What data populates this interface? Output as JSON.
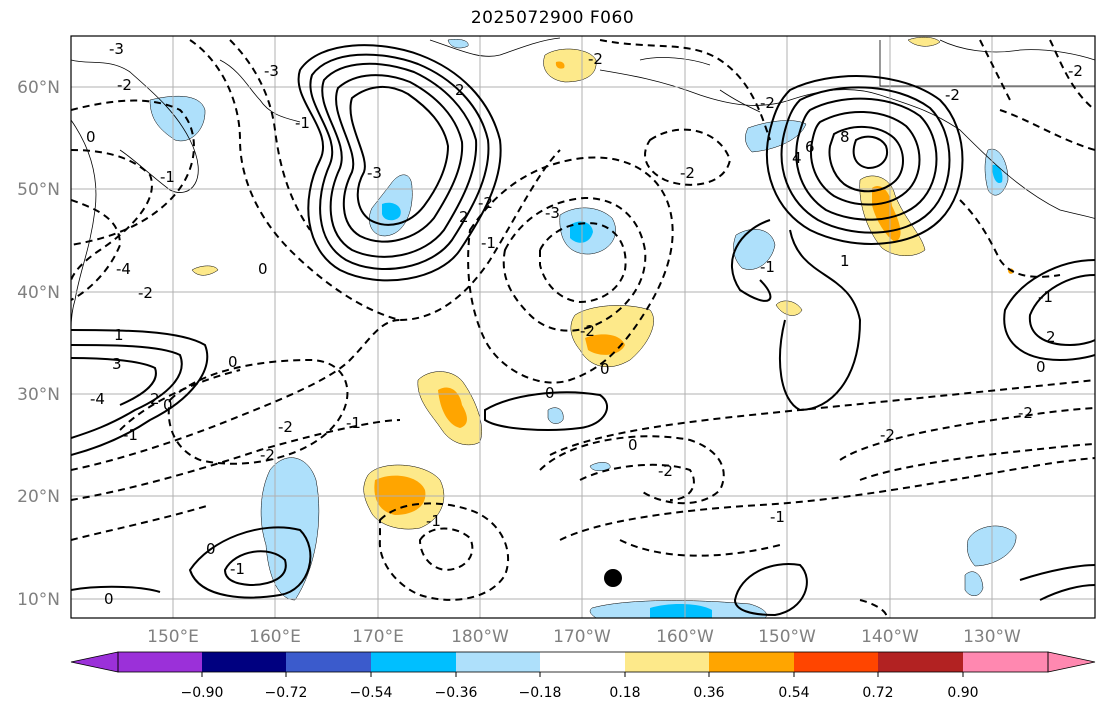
{
  "title": "2025072900 F060",
  "lat_labels": [
    "60°N",
    "50°N",
    "40°N",
    "30°N",
    "20°N",
    "10°N"
  ],
  "lon_labels": [
    "150°E",
    "160°E",
    "170°E",
    "180°W",
    "170°W",
    "160°W",
    "150°W",
    "140°W",
    "130°W"
  ],
  "colorbar": {
    "ticks": [
      "−0.90",
      "−0.72",
      "−0.54",
      "−0.36",
      "−0.18",
      "0.18",
      "0.36",
      "0.54",
      "0.72",
      "0.90"
    ],
    "colors": [
      "#9b30d9",
      "#000080",
      "#3b5bcc",
      "#00bfff",
      "#aee0fb",
      "#ffffff",
      "#fde98a",
      "#ffa500",
      "#ff4500",
      "#b22222",
      "#ff88b0"
    ]
  },
  "contour_labels": [
    "-3",
    "-2",
    "0",
    "-1",
    "-4",
    "-2",
    "-3",
    "-1",
    "2",
    "-3",
    "-2",
    "0",
    "-2",
    "8",
    "6",
    "4",
    "2",
    "-1",
    "1",
    "-3",
    "-2",
    "-2",
    "-2",
    "1",
    "-4",
    "0",
    "3",
    "2",
    "0",
    "-1",
    "-2",
    "-2",
    "-1",
    "0",
    "-2",
    "-2",
    "0",
    "0",
    "-2",
    "-1",
    "-2",
    "-1",
    "-1",
    "0",
    "0",
    "-1",
    "0",
    "-2",
    "2",
    "-1"
  ]
}
